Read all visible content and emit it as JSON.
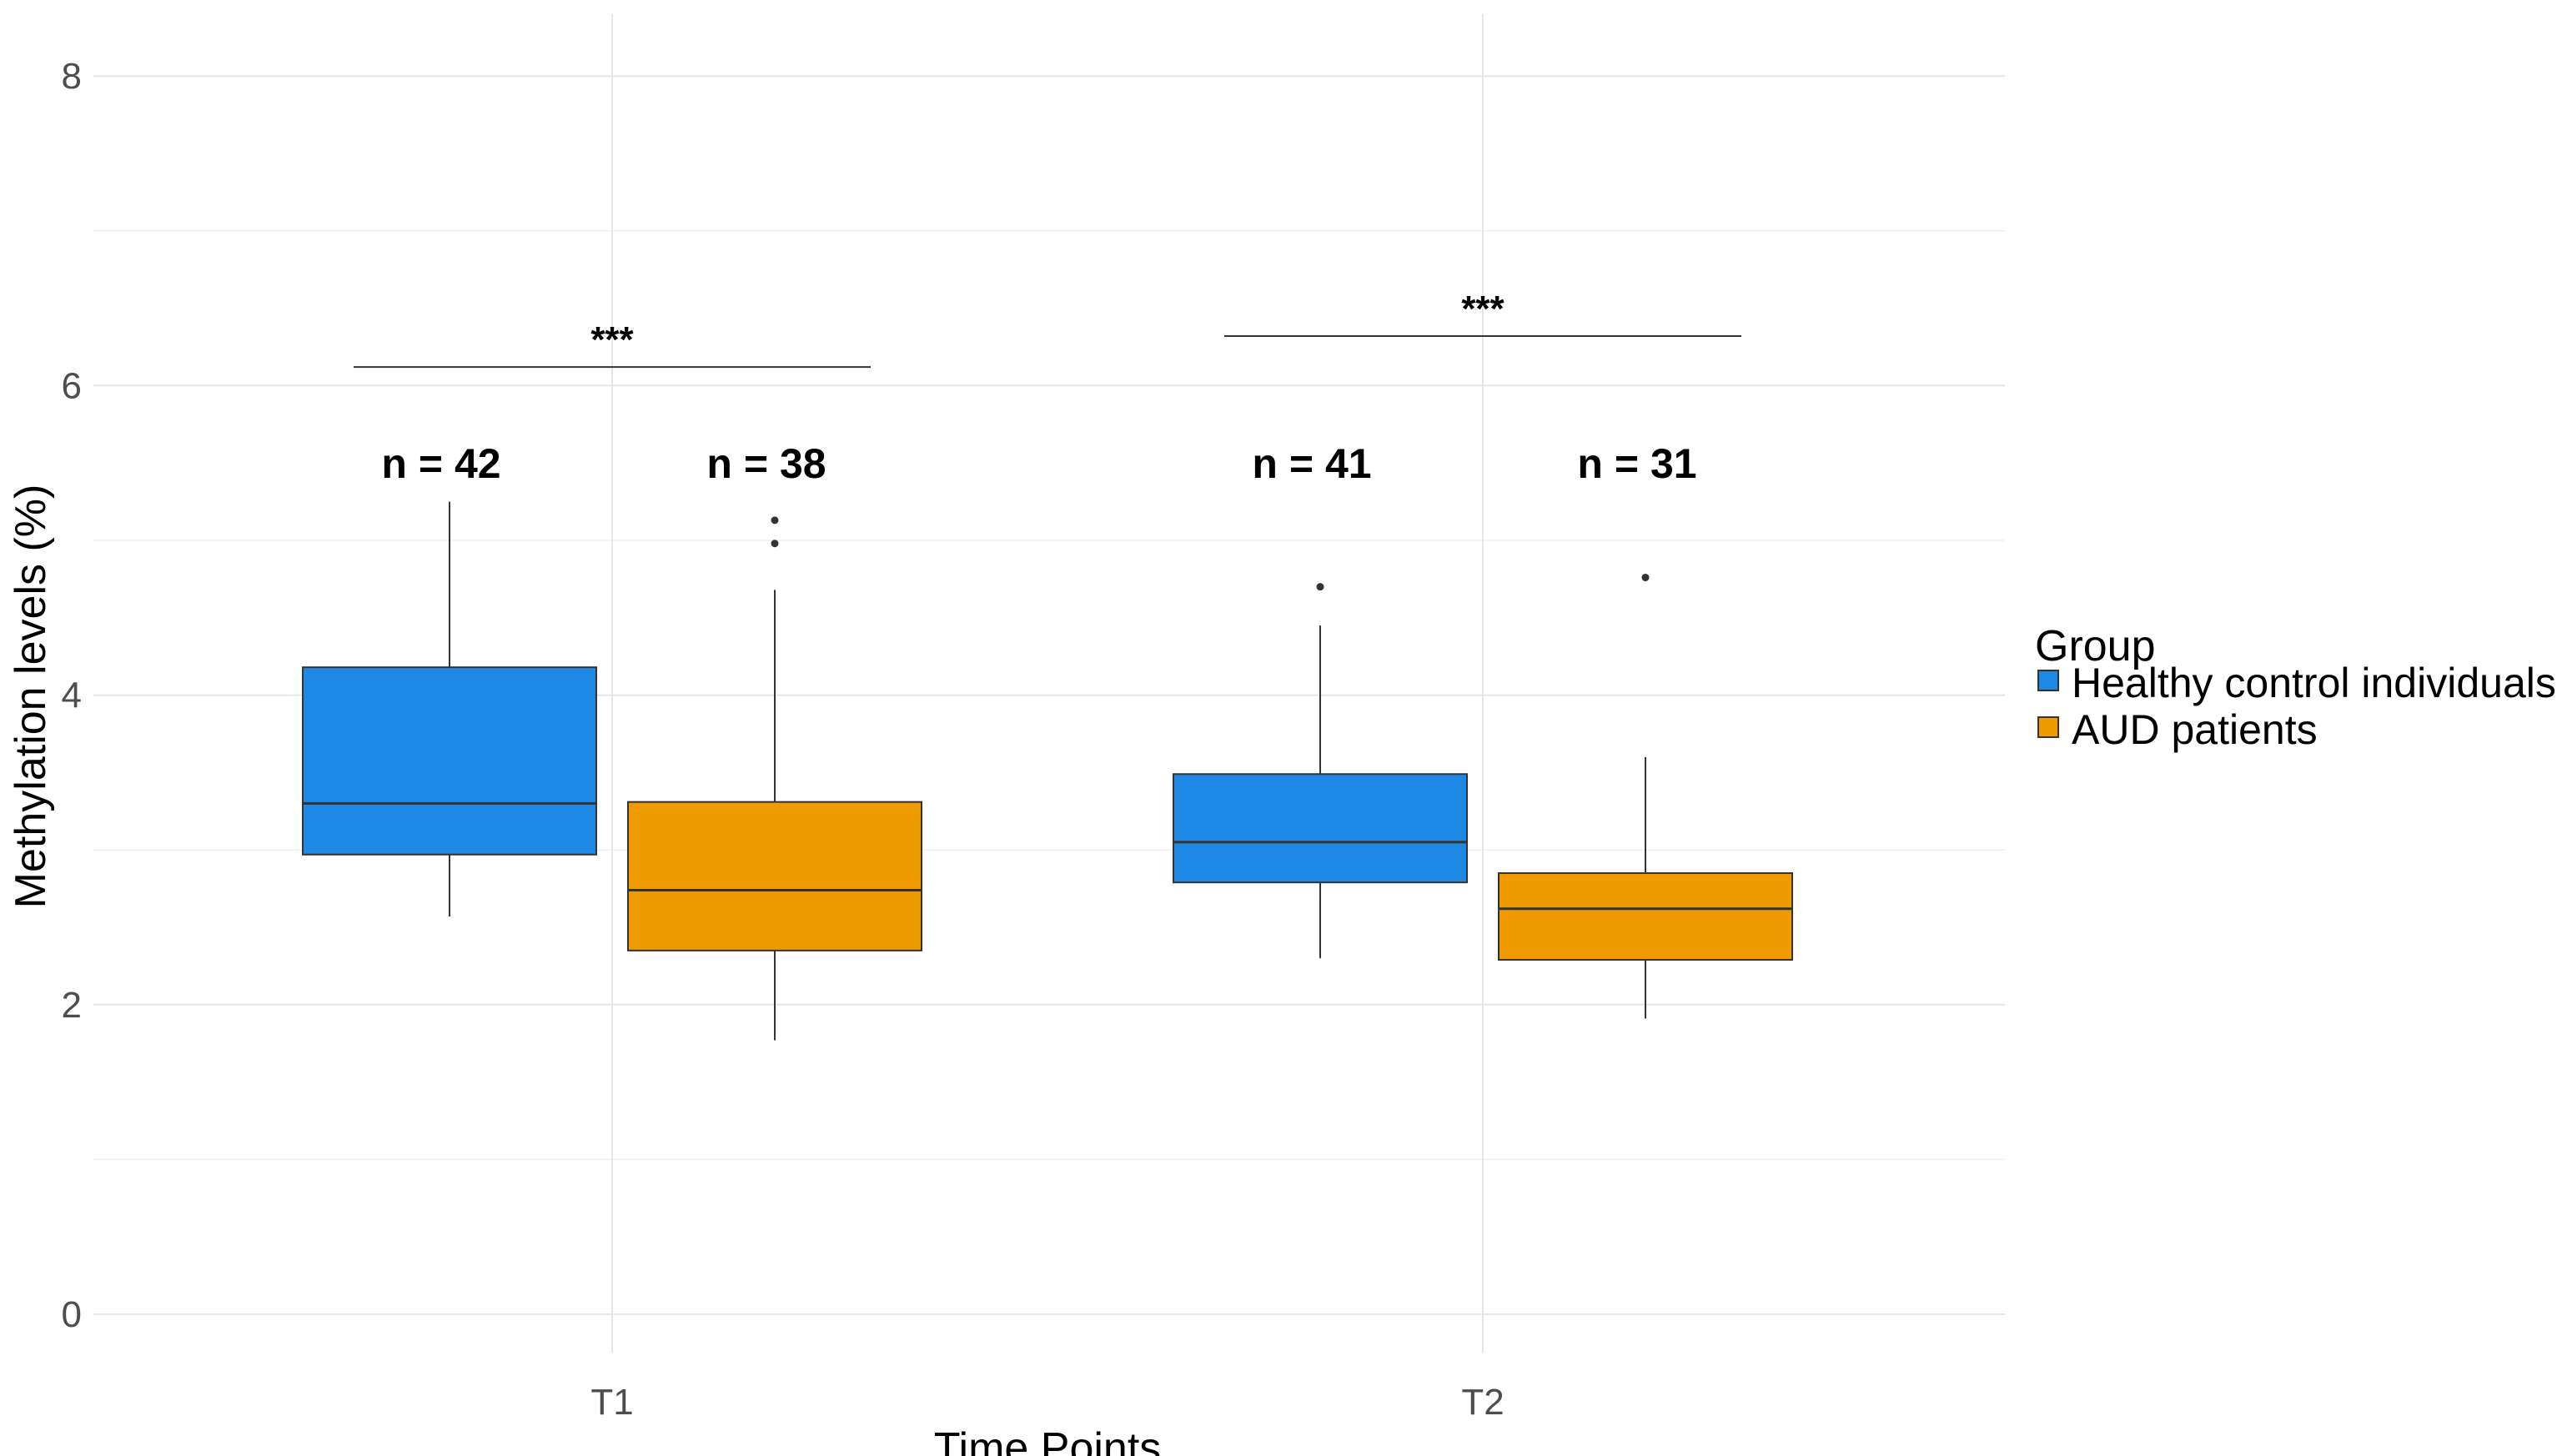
{
  "chart_data": {
    "type": "boxplot",
    "xlabel": "Time Points",
    "ylabel": "Methylation levels (%)",
    "ylim": [
      0,
      8
    ],
    "yticks": [
      "0",
      "2",
      "4",
      "6",
      "8"
    ],
    "categories": [
      "T1",
      "T2"
    ],
    "grid": true,
    "legend": {
      "title": "Group",
      "placement": "right"
    },
    "series": [
      {
        "name": "Healthy control individuals",
        "color": "#1E88E5",
        "boxes": [
          {
            "category": "T1",
            "whisker_low": 2.57,
            "q1": 2.97,
            "median": 3.3,
            "q3": 4.18,
            "whisker_high": 5.25,
            "outliers": [],
            "n_label": "n = 42"
          },
          {
            "category": "T2",
            "whisker_low": 2.3,
            "q1": 2.79,
            "median": 3.05,
            "q3": 3.49,
            "whisker_high": 4.45,
            "outliers": [
              4.7
            ],
            "n_label": "n = 41"
          }
        ]
      },
      {
        "name": "AUD patients",
        "color": "#EF9A00",
        "boxes": [
          {
            "category": "T1",
            "whisker_low": 1.77,
            "q1": 2.35,
            "median": 2.74,
            "q3": 3.31,
            "whisker_high": 4.68,
            "outliers": [
              4.98,
              5.13
            ],
            "n_label": "n = 38"
          },
          {
            "category": "T2",
            "whisker_low": 1.91,
            "q1": 2.29,
            "median": 2.62,
            "q3": 2.85,
            "whisker_high": 3.6,
            "outliers": [
              4.76
            ],
            "n_label": "n = 31"
          }
        ]
      }
    ],
    "significance": [
      {
        "category": "T1",
        "label": "***",
        "y": 6.12
      },
      {
        "category": "T2",
        "label": "***",
        "y": 6.32
      }
    ]
  }
}
